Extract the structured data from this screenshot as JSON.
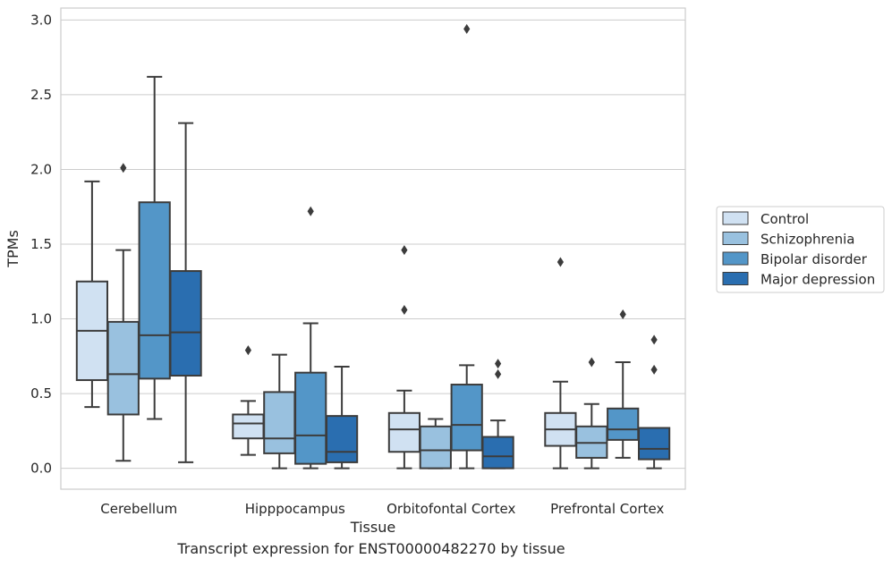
{
  "chart_data": {
    "type": "box",
    "xlabel": "Tissue",
    "ylabel": "TPMs",
    "ylim": [
      -0.14,
      3.08
    ],
    "yticks": [
      "0.0",
      "0.5",
      "1.0",
      "1.5",
      "2.0",
      "2.5",
      "3.0"
    ],
    "categories": [
      "Cerebellum",
      "Hipppocampus",
      "Orbitofontal Cortex",
      "Prefrontal Cortex"
    ],
    "grid": true,
    "legend_position": "right",
    "series": [
      {
        "name": "Control",
        "color": "#d0e1f2",
        "boxes": [
          {
            "whisker_low": 0.41,
            "q1": 0.59,
            "median": 0.92,
            "q3": 1.25,
            "whisker_high": 1.92,
            "outliers": []
          },
          {
            "whisker_low": 0.09,
            "q1": 0.2,
            "median": 0.3,
            "q3": 0.36,
            "whisker_high": 0.45,
            "outliers": [
              0.79
            ]
          },
          {
            "whisker_low": 0.0,
            "q1": 0.11,
            "median": 0.26,
            "q3": 0.37,
            "whisker_high": 0.52,
            "outliers": [
              1.06,
              1.46
            ]
          },
          {
            "whisker_low": 0.0,
            "q1": 0.15,
            "median": 0.26,
            "q3": 0.37,
            "whisker_high": 0.58,
            "outliers": [
              1.38
            ]
          }
        ]
      },
      {
        "name": "Schizophrenia",
        "color": "#99c1df",
        "boxes": [
          {
            "whisker_low": 0.05,
            "q1": 0.36,
            "median": 0.63,
            "q3": 0.98,
            "whisker_high": 1.46,
            "outliers": [
              2.01
            ]
          },
          {
            "whisker_low": 0.0,
            "q1": 0.1,
            "median": 0.2,
            "q3": 0.51,
            "whisker_high": 0.76,
            "outliers": []
          },
          {
            "whisker_low": 0.0,
            "q1": 0.0,
            "median": 0.12,
            "q3": 0.28,
            "whisker_high": 0.33,
            "outliers": []
          },
          {
            "whisker_low": 0.0,
            "q1": 0.07,
            "median": 0.17,
            "q3": 0.28,
            "whisker_high": 0.43,
            "outliers": [
              0.71
            ]
          }
        ]
      },
      {
        "name": "Bipolar disorder",
        "color": "#5396c8",
        "boxes": [
          {
            "whisker_low": 0.33,
            "q1": 0.6,
            "median": 0.89,
            "q3": 1.78,
            "whisker_high": 2.62,
            "outliers": []
          },
          {
            "whisker_low": 0.0,
            "q1": 0.03,
            "median": 0.22,
            "q3": 0.64,
            "whisker_high": 0.97,
            "outliers": [
              1.72
            ]
          },
          {
            "whisker_low": 0.0,
            "q1": 0.12,
            "median": 0.29,
            "q3": 0.56,
            "whisker_high": 0.69,
            "outliers": [
              2.94
            ]
          },
          {
            "whisker_low": 0.07,
            "q1": 0.19,
            "median": 0.26,
            "q3": 0.4,
            "whisker_high": 0.71,
            "outliers": [
              1.03
            ]
          }
        ]
      },
      {
        "name": "Major depression",
        "color": "#2a6eb0",
        "boxes": [
          {
            "whisker_low": 0.04,
            "q1": 0.62,
            "median": 0.91,
            "q3": 1.32,
            "whisker_high": 2.31,
            "outliers": []
          },
          {
            "whisker_low": 0.0,
            "q1": 0.04,
            "median": 0.11,
            "q3": 0.35,
            "whisker_high": 0.68,
            "outliers": []
          },
          {
            "whisker_low": 0.0,
            "q1": 0.0,
            "median": 0.08,
            "q3": 0.21,
            "whisker_high": 0.32,
            "outliers": [
              0.63,
              0.7
            ]
          },
          {
            "whisker_low": 0.0,
            "q1": 0.06,
            "median": 0.13,
            "q3": 0.27,
            "whisker_high": 0.27,
            "outliers": [
              0.66,
              0.86
            ]
          }
        ]
      }
    ],
    "caption": "Transcript expression for ENST00000482270 by tissue"
  }
}
